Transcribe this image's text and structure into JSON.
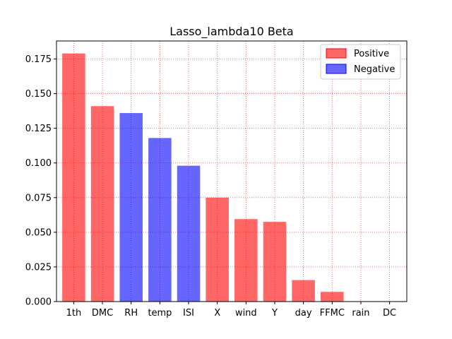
{
  "chart_data": {
    "type": "bar",
    "title": "Lasso_lambda10 Beta",
    "xlabel": "",
    "ylabel": "",
    "categories": [
      "1th",
      "DMC",
      "RH",
      "temp",
      "ISI",
      "X",
      "wind",
      "Y",
      "day",
      "FFMC",
      "rain",
      "DC"
    ],
    "values": [
      0.179,
      0.141,
      0.136,
      0.118,
      0.098,
      0.075,
      0.0595,
      0.0575,
      0.0155,
      0.007,
      0.0,
      0.0
    ],
    "signs": [
      "Positive",
      "Positive",
      "Negative",
      "Negative",
      "Negative",
      "Positive",
      "Positive",
      "Positive",
      "Positive",
      "Positive",
      "Positive",
      "Positive"
    ],
    "yticks": [
      "0.000",
      "0.025",
      "0.050",
      "0.075",
      "0.100",
      "0.125",
      "0.150",
      "0.175"
    ],
    "ylim": [
      0,
      0.188
    ],
    "grid": true,
    "legend_position": "top-right",
    "legend": [
      {
        "name": "Positive",
        "color": "#ff0000"
      },
      {
        "name": "Negative",
        "color": "#0000ff"
      }
    ],
    "bar_alpha": 0.6,
    "grid_color": "#ff0000"
  }
}
